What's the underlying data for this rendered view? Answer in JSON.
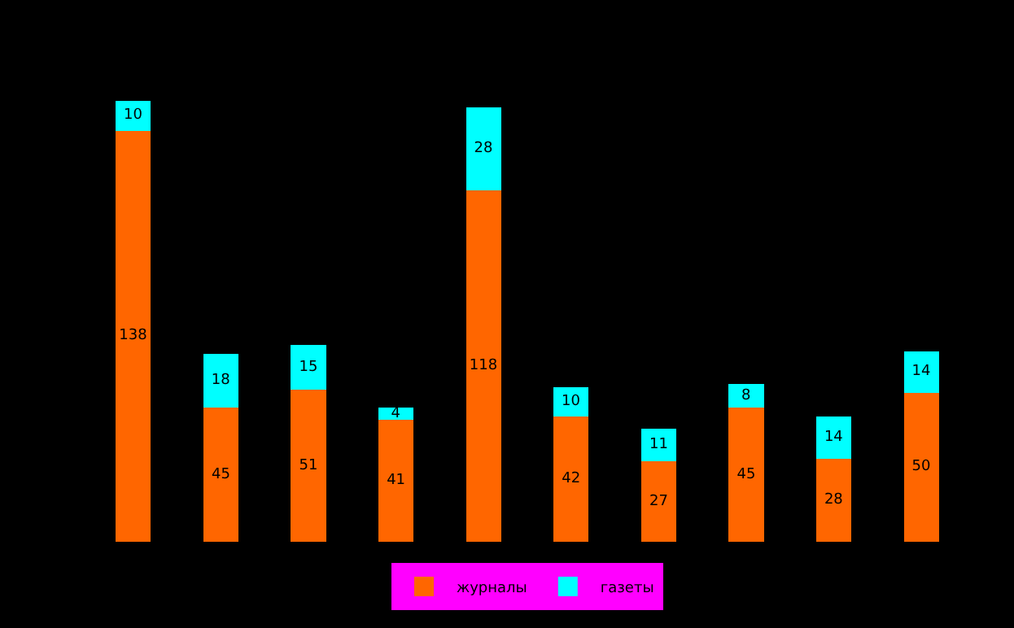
{
  "chart_data": {
    "type": "bar",
    "stacked": true,
    "data_labels": true,
    "legend": "bottom",
    "grid": false,
    "categories": [
      null,
      null,
      null,
      null,
      null,
      null,
      null,
      null,
      null,
      null
    ],
    "series": [
      {
        "name": "журналы",
        "color": "#ff6600",
        "values": [
          138,
          45,
          51,
          41,
          118,
          42,
          27,
          45,
          28,
          50
        ]
      },
      {
        "name": "газеты",
        "color": "#00ffff",
        "values": [
          10,
          18,
          15,
          4,
          28,
          10,
          11,
          8,
          14,
          14
        ]
      }
    ]
  }
}
